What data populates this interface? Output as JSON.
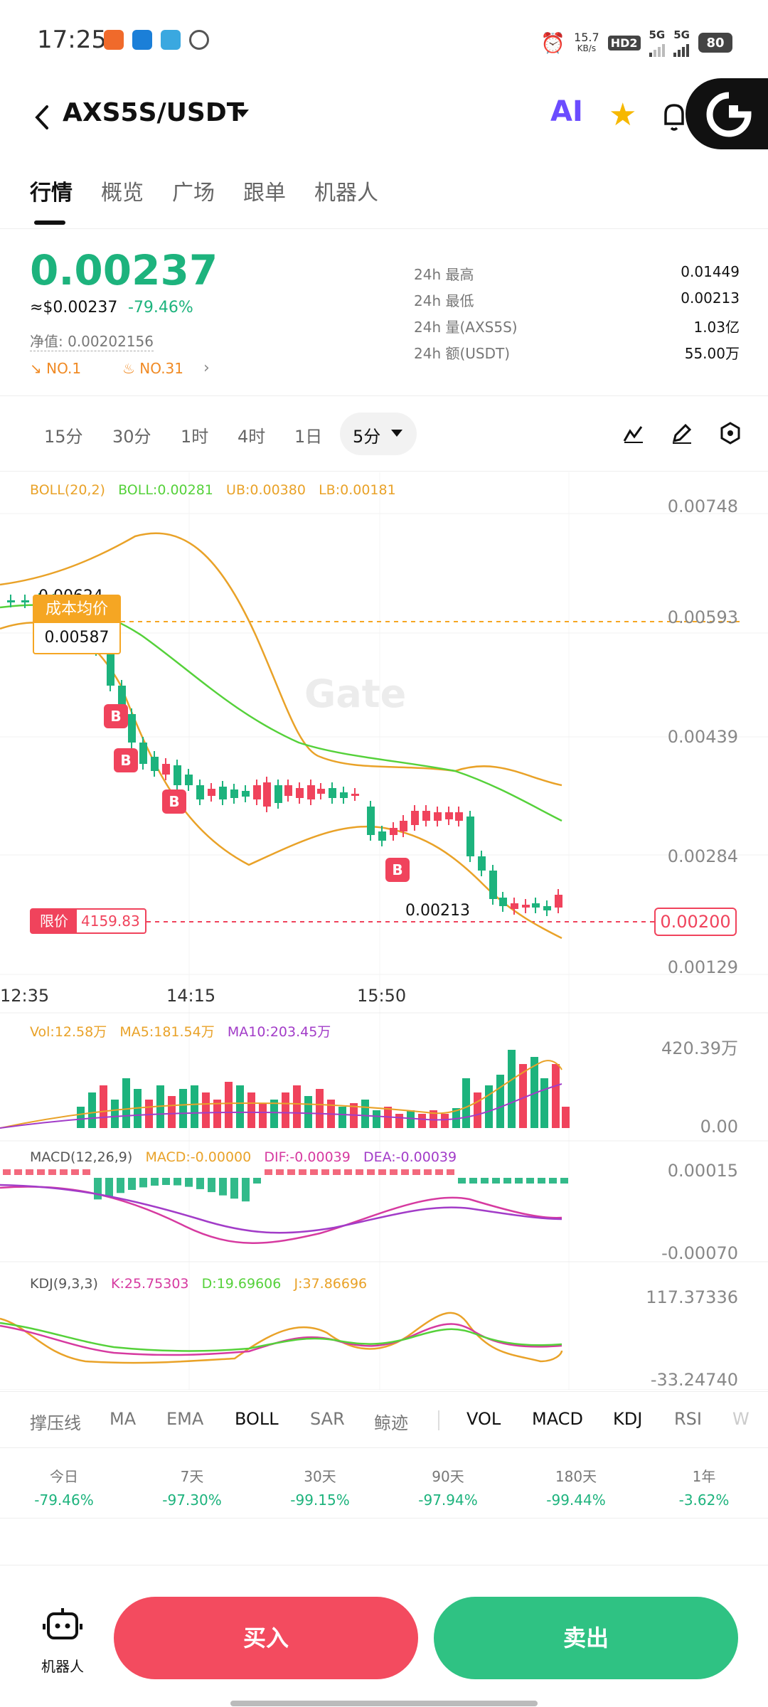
{
  "status_bar": {
    "time": "17:25",
    "net_speed": "15.7",
    "net_unit": "KB/s",
    "hd": "HD2",
    "sig1": "5G",
    "sig2": "5G",
    "battery": "80"
  },
  "header": {
    "pair": "AXS5S/USDT",
    "ai_label": "AI"
  },
  "tabs": [
    "行情",
    "概览",
    "广场",
    "跟单",
    "机器人"
  ],
  "ticker": {
    "price": "0.00237",
    "usd_price": "≈$0.00237",
    "change": "-79.46%",
    "nav": "净值: 0.00202156",
    "rank1": "NO.1",
    "rank2": "NO.31",
    "stats": [
      {
        "label": "24h  最高",
        "value": "0.01449"
      },
      {
        "label": "24h  最低",
        "value": "0.00213"
      },
      {
        "label": "24h  量(AXS5S)",
        "value": "1.03亿"
      },
      {
        "label": "24h  额(USDT)",
        "value": "55.00万"
      }
    ]
  },
  "timeframes": [
    "15分",
    "30分",
    "1时",
    "4时",
    "1日"
  ],
  "timeframe_active": "5分",
  "chart": {
    "boll_legend": {
      "name": "BOLL(20,2)",
      "boll": "BOLL:0.00281",
      "ub": "UB:0.00380",
      "lb": "LB:0.00181"
    },
    "price_axis": [
      "0.00748",
      "0.00593",
      "0.00439",
      "0.00284",
      "0.00129"
    ],
    "time_axis": [
      "12:35",
      "14:15",
      "15:50"
    ],
    "cost_label": "成本均价",
    "cost_value": "0.00587",
    "high_marker": "0.00624",
    "low_marker": "0.00213",
    "limit_label": "限价",
    "limit_qty": "4159.83",
    "limit_price": "0.00200",
    "watermark": "Gate",
    "vol_legend": {
      "vol": "Vol:12.58万",
      "ma5": "MA5:181.54万",
      "ma10": "MA10:203.45万"
    },
    "vol_axis": [
      "420.39万",
      "0.00"
    ],
    "macd_legend": {
      "name": "MACD(12,26,9)",
      "macd": "MACD:-0.00000",
      "dif": "DIF:-0.00039",
      "dea": "DEA:-0.00039"
    },
    "macd_axis": [
      "0.00015",
      "-0.00070"
    ],
    "kdj_legend": {
      "name": "KDJ(9,3,3)",
      "k": "K:25.75303",
      "d": "D:19.69606",
      "j": "J:37.86696"
    },
    "kdj_axis": [
      "117.37336",
      "-33.24740"
    ],
    "buy_marker": "B",
    "colors": {
      "up": "#f0435c",
      "down": "#1db37d",
      "boll_mid": "#55d13a",
      "boll_band": "#e9a228"
    }
  },
  "indicators_main": [
    "撑压线",
    "MA",
    "EMA",
    "BOLL",
    "SAR",
    "鲸迹"
  ],
  "indicators_sub": [
    "VOL",
    "MACD",
    "KDJ",
    "RSI",
    "W"
  ],
  "performance": [
    {
      "period": "今日",
      "value": "-79.46%"
    },
    {
      "period": "7天",
      "value": "-97.30%"
    },
    {
      "period": "30天",
      "value": "-99.15%"
    },
    {
      "period": "90天",
      "value": "-97.94%"
    },
    {
      "period": "180天",
      "value": "-99.44%"
    },
    {
      "period": "1年",
      "value": "-3.62%"
    }
  ],
  "bottom_bar": {
    "robot_label": "机器人",
    "buy_label": "买入",
    "sell_label": "卖出"
  }
}
